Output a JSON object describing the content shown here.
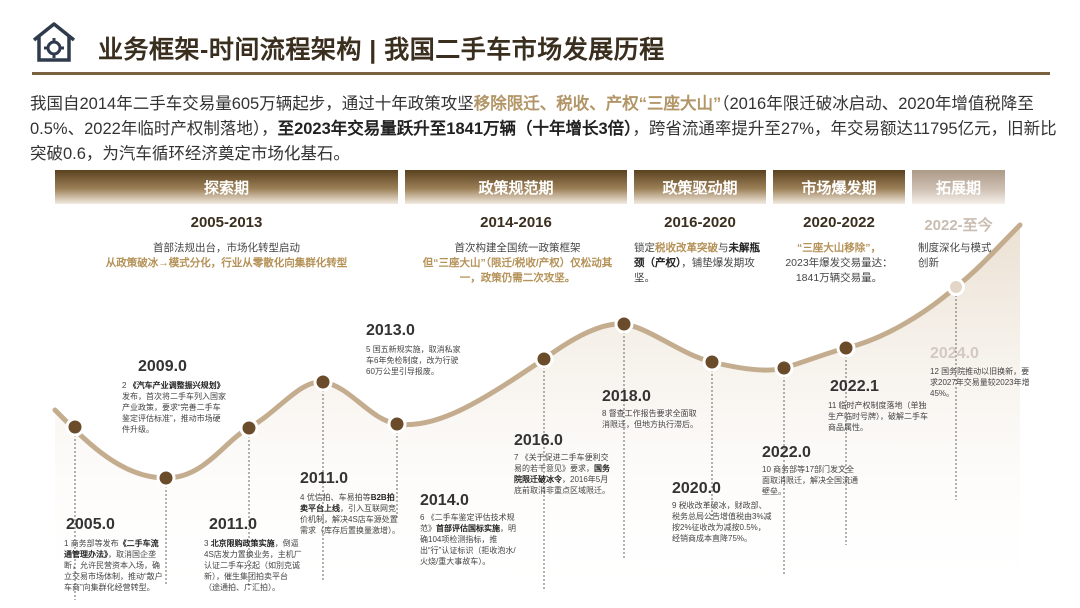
{
  "header": {
    "title": "业务框架-时间流程架构 | 我国二手车市场发展历程",
    "icon": "house-gear-icon"
  },
  "intro": {
    "p1": "我国自2014年二手车交易量605万辆起步，通过十年政策攻坚",
    "h1": "移除限迁、税收、产权“三座大山”",
    "p2": "（2016年限迁破冰启动、2020年增值税降至0.5%、2022年临时产权制落地），",
    "b1": "至2023年交易量跃升至1841万辆（十年增长3倍）",
    "p3": "，跨省流通率提升至27%，年交易额达11795亿元，旧新比突破0.6，为汽车循环经济奠定市场化基石。"
  },
  "phases": [
    {
      "name": "探索期",
      "range": "2005-2013",
      "desc1": "首部法规出台，市场化转型启动",
      "desc2": "从政策破冰→模式分化，行业从零散化向集群化转型"
    },
    {
      "name": "政策规范期",
      "range": "2014-2016",
      "desc1": "首次构建全国统一政策框架",
      "desc2": "但“三座大山”（限迁/税收/产权）仅松动其一，政策仍需二次攻坚。"
    },
    {
      "name": "政策驱动期",
      "range": "2016-2020",
      "desc1a": "锁定",
      "desc1b": "税收改革突破",
      "desc1c": "与",
      "desc1d": "未解瓶颈（产权）",
      "desc1e": "，铺垫爆发期攻坚。"
    },
    {
      "name": "市场爆发期",
      "range": "2020-2022",
      "desc1": "“三座大山移除”，",
      "desc2": "2023年爆发交易量达：",
      "desc3": "1841万辆交易量。"
    },
    {
      "name": "拓展期",
      "range": "2022-至今",
      "desc1": "制度深化与模式创新"
    }
  ],
  "milestones": [
    {
      "year": "2005.0",
      "num": "1",
      "text_a": "商务部等发布",
      "text_b": "《二手车流通管理办法》",
      "text_c": "，取消国企垄断，允许民营资本入场，确立交易市场体制，推动“散户车商”向集群化经营转型。"
    },
    {
      "year": "2009.0",
      "num": "2",
      "text_a": "《汽车产业调整振兴规划》",
      "text_b": "",
      "text_c": "发布，首次将二手车列入国家产业政策，要求“完善二手车鉴定评估标准”，推动市场硬件升级。"
    },
    {
      "year": "2011.0",
      "num": "3",
      "text_a": "",
      "text_b": "北京限购政策实施",
      "text_c": "，倒逼4S店发力置换业务，主机厂认证二手车兴起（如別克诚新），催生集团拍卖平台（途通拍、广汇拍）。"
    },
    {
      "year": "2011.0",
      "num": "4",
      "text_a": "优信拍、车易拍等",
      "text_b": "B2B拍卖平台上线",
      "text_c": "，引入互联网竞价机制，解决4S店车源处置需求（库存后置换量激增）。"
    },
    {
      "year": "2013.0",
      "num": "5",
      "text_a": "",
      "text_b": "",
      "text_c": "国五新规实施，取消私家车6年免检制度，改为行驶60万公里引导报废。"
    },
    {
      "year": "2014.0",
      "num": "6",
      "text_a": "《二手车鉴定评估技术规范》",
      "text_b": "首部评估国标实施",
      "text_c": "，明确104项检测指标，推出“行”认证标识（拒收泡水/火烧/重大事故车）。"
    },
    {
      "year": "2016.0",
      "num": "7",
      "text_a": "《关于促进二手车便利交易的若干意见》要求，",
      "text_b": "国务院限迁破冰令",
      "text_c": "，2016年5月底前取消非重点区域限迁。"
    },
    {
      "year": "2018.0",
      "num": "8",
      "text_a": "",
      "text_b": "",
      "text_c": "督查工作报告要求全面取消限迁，但地方执行滞后。"
    },
    {
      "year": "2020.0",
      "num": "9",
      "text_a": "",
      "text_b": "",
      "text_c": "税收改革破冰，财政部、税务总局公告增值税由3%减按2%征收改为减按0.5%，经销商成本直降75%。"
    },
    {
      "year": "2022.0",
      "num": "10",
      "text_a": "",
      "text_b": "",
      "text_c": "商务部等17部门发文全面取消限迁，解决全国流通壁垒。"
    },
    {
      "year": "2022.1",
      "num": "11",
      "text_a": "",
      "text_b": "",
      "text_c": "临时产权制度落地（单独生产临时号牌），破解二手车商品属性。"
    },
    {
      "year": "2024.0",
      "num": "12",
      "text_a": "",
      "text_b": "",
      "text_c": "国务院推动以旧换新，要求2027年交易量较2023年增45%。"
    }
  ],
  "colors": {
    "brown_dark": "#5a4220",
    "gold": "#b59258",
    "curve": "#c4ad8f",
    "dot": "#6b4c2a"
  }
}
